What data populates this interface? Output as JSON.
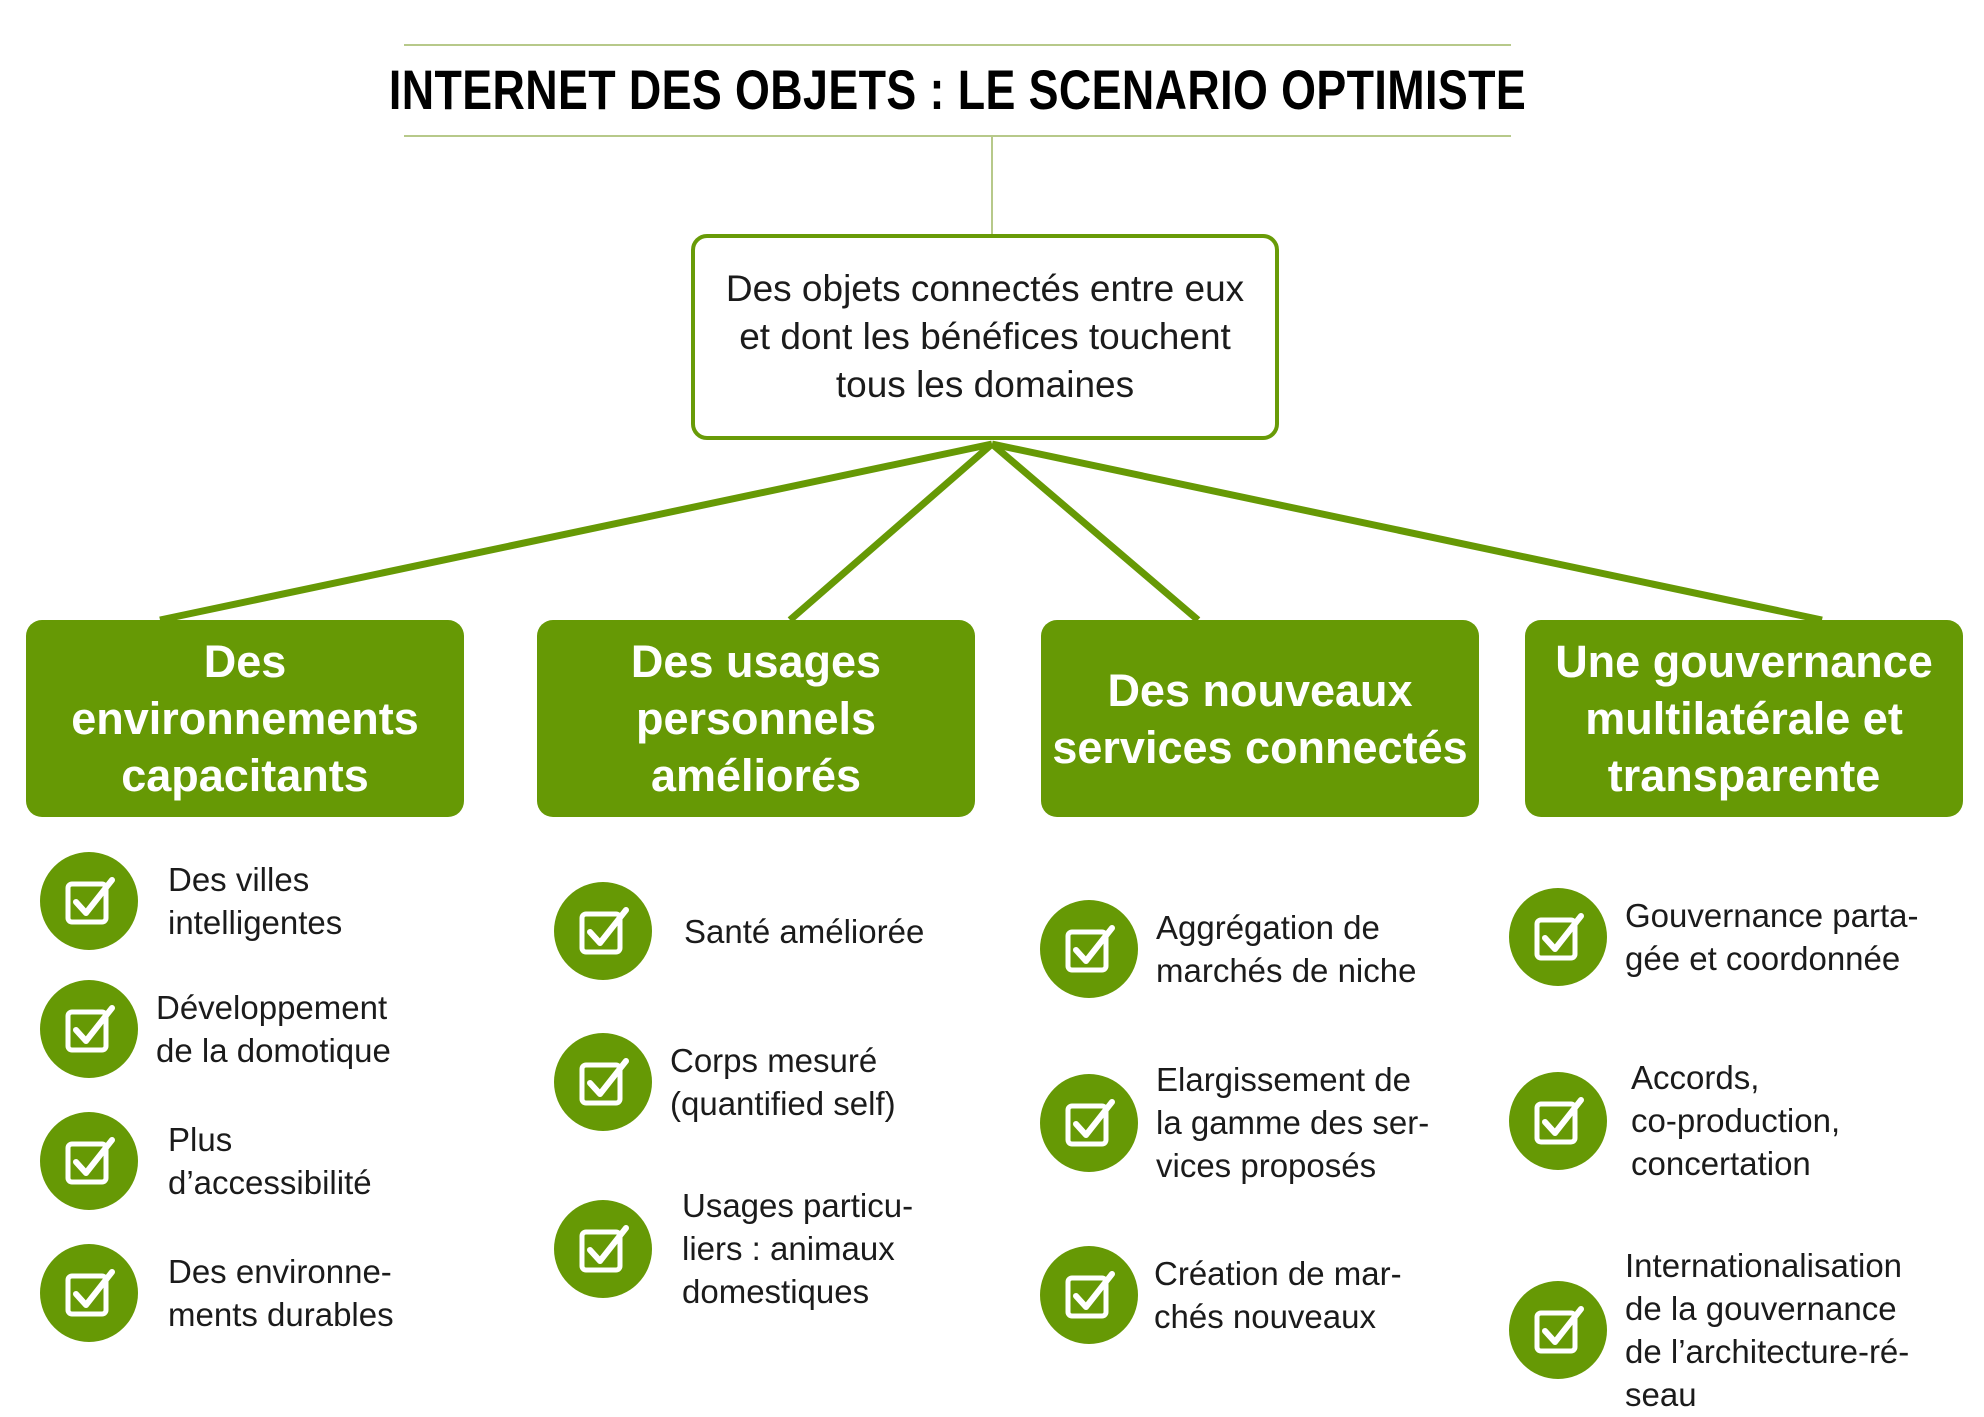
{
  "title": "INTERNET DES OBJETS : LE SCENARIO OPTIMISTE",
  "root": "Des objets connectés entre eux et dont les bénéfices touchent tous les domaines",
  "colors": {
    "accent": "#669905",
    "rule": "#b7c98a"
  },
  "icon": "checked-box-icon",
  "categories": [
    {
      "label": "Des environnements capacitants",
      "items": [
        "Des villes\nintelligentes",
        "Développement\nde la domotique",
        "Plus\nd’accessibilité",
        "Des environne-\nments durables"
      ]
    },
    {
      "label": "Des usages personnels améliorés",
      "items": [
        "Santé améliorée",
        "Corps mesuré\n(quantified self)",
        "Usages particu-\nliers : animaux\ndomestiques"
      ]
    },
    {
      "label": "Des nouveaux services connectés",
      "items": [
        "Aggrégation de\nmarchés de niche",
        "Elargissement de\nla gamme des ser-\nvices proposés",
        "Création de mar-\nchés nouveaux"
      ]
    },
    {
      "label": "Une gouvernance multilatérale et transparente",
      "items": [
        "Gouvernance parta-\ngée et coordonnée",
        "Accords,\nco-production,\nconcertation",
        "Internationalisation\nde la gouvernance\nde l’architecture-ré-\nseau"
      ]
    }
  ]
}
